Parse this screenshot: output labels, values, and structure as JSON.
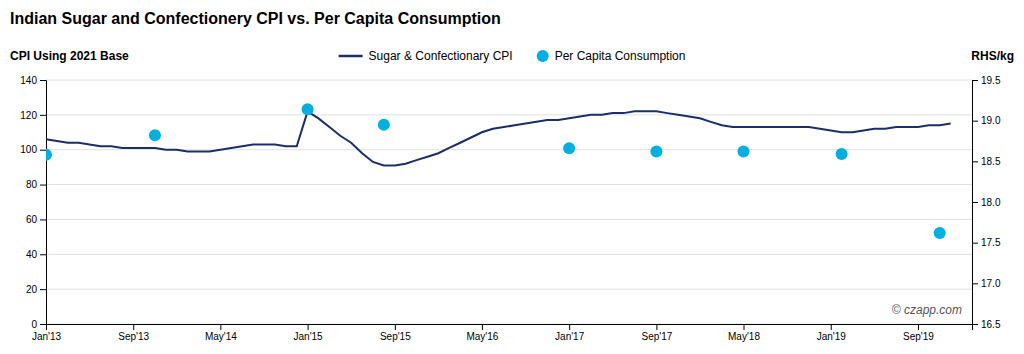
{
  "chart_data": {
    "type": "line",
    "title": "Indian Sugar and Confectionery CPI vs. Per Capita Consumption",
    "ylabel": "CPI Using 2021 Base",
    "y2label": "RHS/kg",
    "annotations": [
      "© czapp.com"
    ],
    "xlim": [
      2013.0,
      2020.08
    ],
    "xticks": [
      {
        "value": 2013.0,
        "label": "Jan'13"
      },
      {
        "value": 2013.667,
        "label": "Sep'13"
      },
      {
        "value": 2014.333,
        "label": "May'14"
      },
      {
        "value": 2015.0,
        "label": "Jan'15"
      },
      {
        "value": 2015.667,
        "label": "Sep'15"
      },
      {
        "value": 2016.333,
        "label": "May'16"
      },
      {
        "value": 2017.0,
        "label": "Jan'17"
      },
      {
        "value": 2017.667,
        "label": "Sep'17"
      },
      {
        "value": 2018.333,
        "label": "May'18"
      },
      {
        "value": 2019.0,
        "label": "Jan'19"
      },
      {
        "value": 2019.667,
        "label": "Sep'19"
      }
    ],
    "ylim": [
      0,
      140
    ],
    "yticks": [
      0,
      20,
      40,
      60,
      80,
      100,
      120,
      140
    ],
    "y2lim": [
      16.5,
      19.5
    ],
    "y2ticks": [
      16.5,
      {
        "value": 17.0,
        "label": "17.0"
      },
      17.5,
      {
        "value": 18.0,
        "label": "18.0"
      },
      18.5,
      {
        "value": 19.0,
        "label": "19.0"
      },
      19.5
    ],
    "grid": true,
    "legend": "top",
    "series": [
      {
        "name": "Sugar & Confectionary CPI",
        "type": "line",
        "color": "#1a2e6e",
        "x": [
          2013.0,
          2013.083,
          2013.167,
          2013.25,
          2013.333,
          2013.417,
          2013.5,
          2013.583,
          2013.667,
          2013.75,
          2013.833,
          2013.917,
          2014.0,
          2014.083,
          2014.167,
          2014.25,
          2014.333,
          2014.417,
          2014.5,
          2014.583,
          2014.667,
          2014.75,
          2014.833,
          2014.917,
          2015.0,
          2015.083,
          2015.167,
          2015.25,
          2015.333,
          2015.417,
          2015.5,
          2015.583,
          2015.667,
          2015.75,
          2015.833,
          2015.917,
          2016.0,
          2016.083,
          2016.167,
          2016.25,
          2016.333,
          2016.417,
          2016.5,
          2016.583,
          2016.667,
          2016.75,
          2016.833,
          2016.917,
          2017.0,
          2017.083,
          2017.167,
          2017.25,
          2017.333,
          2017.417,
          2017.5,
          2017.583,
          2017.667,
          2017.75,
          2017.833,
          2017.917,
          2018.0,
          2018.083,
          2018.167,
          2018.25,
          2018.333,
          2018.417,
          2018.5,
          2018.583,
          2018.667,
          2018.75,
          2018.833,
          2018.917,
          2019.0,
          2019.083,
          2019.167,
          2019.25,
          2019.333,
          2019.417,
          2019.5,
          2019.583,
          2019.667,
          2019.75,
          2019.833,
          2019.917
        ],
        "values": [
          106,
          105,
          104,
          104,
          103,
          102,
          102,
          101,
          101,
          101,
          101,
          100,
          100,
          99,
          99,
          99,
          100,
          101,
          102,
          103,
          103,
          103,
          102,
          102,
          122,
          118,
          113,
          108,
          104,
          98,
          93,
          91,
          91,
          92,
          94,
          96,
          98,
          101,
          104,
          107,
          110,
          112,
          113,
          114,
          115,
          116,
          117,
          117,
          118,
          119,
          120,
          120,
          121,
          121,
          122,
          122,
          122,
          121,
          120,
          119,
          118,
          116,
          114,
          113,
          113,
          113,
          113,
          113,
          113,
          113,
          113,
          112,
          111,
          110,
          110,
          111,
          112,
          112,
          113,
          113,
          113,
          114,
          114,
          115
        ]
      },
      {
        "name": "Per Capita Consumption",
        "type": "scatter",
        "axis": "y2",
        "color": "#00b0e0",
        "x": [
          2013.0,
          2013.833,
          2015.0,
          2015.583,
          2017.0,
          2017.667,
          2018.333,
          2019.083,
          2019.833
        ],
        "values": [
          18.58,
          18.82,
          19.14,
          18.95,
          18.66,
          18.62,
          18.62,
          18.59,
          17.62
        ]
      }
    ]
  }
}
